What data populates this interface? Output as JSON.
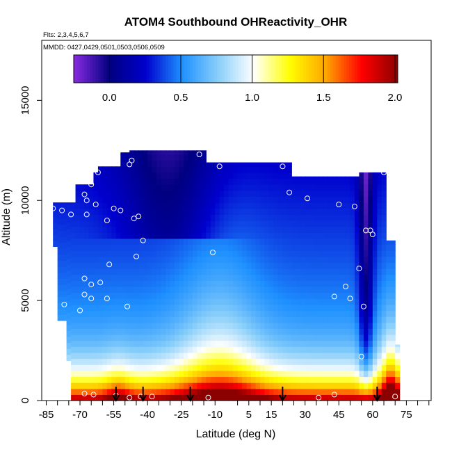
{
  "title": "ATOM4 Southbound OHReactivity_OHR",
  "flights_text": "Flts: 2,3,4,5,6,7",
  "mmdd_text": "MMDD: 0427,0429,0501,0503,0506,0509",
  "chart_data": {
    "type": "heatmap",
    "title": "ATOM4 Southbound OHReactivity_OHR",
    "xlabel": "Latitude (deg N)",
    "ylabel": "Altitude (m)",
    "xlim": [
      -87,
      86
    ],
    "ylim": [
      0,
      18000
    ],
    "x_ticks": [
      -85,
      -70,
      -55,
      -40,
      -25,
      -10,
      5,
      15,
      30,
      45,
      60,
      75
    ],
    "x_tick_labels": [
      "-85",
      "-70",
      "-55",
      "-40",
      "-25",
      "-10",
      "5",
      "15",
      "30",
      "45",
      "60",
      "75"
    ],
    "x_minor_ticks": [
      -80,
      -75,
      -65,
      -60,
      -50,
      -45,
      -35,
      -30,
      -20,
      -15,
      0,
      10,
      20,
      25,
      35,
      40,
      50,
      55,
      65,
      70,
      80,
      85
    ],
    "y_ticks": [
      0,
      5000,
      10000,
      15000
    ],
    "y_tick_labels": [
      "0",
      "5000",
      "10000",
      "15000"
    ],
    "colorbar": {
      "range": [
        -0.25,
        2.02
      ],
      "ticks": [
        0.0,
        0.5,
        1.0,
        1.5,
        2.0
      ],
      "tick_labels": [
        "0.0",
        "0.5",
        "1.0",
        "1.5",
        "2.0"
      ],
      "colors": [
        "#8a2be2",
        "#000080",
        "#0000cd",
        "#1e90ff",
        "#87cefa",
        "#ffffff",
        "#ffff00",
        "#ffa500",
        "#ff0000",
        "#8b0000"
      ]
    },
    "sample_points": [
      {
        "x": -82,
        "y": 9600
      },
      {
        "x": -78,
        "y": 9500
      },
      {
        "x": -74,
        "y": 9300
      },
      {
        "x": -68,
        "y": 10300
      },
      {
        "x": -67,
        "y": 10000
      },
      {
        "x": -65,
        "y": 10800
      },
      {
        "x": -62,
        "y": 11400
      },
      {
        "x": -63,
        "y": 9800
      },
      {
        "x": -58,
        "y": 9000
      },
      {
        "x": -55,
        "y": 9600
      },
      {
        "x": -52,
        "y": 9500
      },
      {
        "x": -47,
        "y": 12000
      },
      {
        "x": -48,
        "y": 11800
      },
      {
        "x": -46,
        "y": 9100
      },
      {
        "x": -44,
        "y": 9200
      },
      {
        "x": -42,
        "y": 8000
      },
      {
        "x": -67,
        "y": 9300
      },
      {
        "x": -57,
        "y": 6800
      },
      {
        "x": -45,
        "y": 7200
      },
      {
        "x": -68,
        "y": 6100
      },
      {
        "x": -65,
        "y": 5800
      },
      {
        "x": -61,
        "y": 5900
      },
      {
        "x": -68,
        "y": 5300
      },
      {
        "x": -65,
        "y": 5100
      },
      {
        "x": -58,
        "y": 5100
      },
      {
        "x": -49,
        "y": 4700
      },
      {
        "x": -77,
        "y": 4800
      },
      {
        "x": -70,
        "y": 4500
      },
      {
        "x": -68,
        "y": 350
      },
      {
        "x": -64,
        "y": 300
      },
      {
        "x": -54,
        "y": 250
      },
      {
        "x": -48,
        "y": 150
      },
      {
        "x": -43,
        "y": 200
      },
      {
        "x": -38,
        "y": 200
      },
      {
        "x": -17,
        "y": 12300
      },
      {
        "x": -8,
        "y": 11700
      },
      {
        "x": -11,
        "y": 7400
      },
      {
        "x": 20,
        "y": 11700
      },
      {
        "x": 23,
        "y": 10400
      },
      {
        "x": 31,
        "y": 10100
      },
      {
        "x": 45,
        "y": 9800
      },
      {
        "x": 52,
        "y": 9700
      },
      {
        "x": 57,
        "y": 8500
      },
      {
        "x": 59,
        "y": 8500
      },
      {
        "x": 60,
        "y": 8300
      },
      {
        "x": 65,
        "y": 11400
      },
      {
        "x": 54,
        "y": 6600
      },
      {
        "x": 48,
        "y": 5700
      },
      {
        "x": 43,
        "y": 5200
      },
      {
        "x": 50,
        "y": 5100
      },
      {
        "x": 56,
        "y": 4700
      },
      {
        "x": 55,
        "y": 2200
      },
      {
        "x": 36,
        "y": 150
      },
      {
        "x": 43,
        "y": 300
      },
      {
        "x": -13,
        "y": 150
      },
      {
        "x": 70,
        "y": 200
      }
    ],
    "arrows_latitude": [
      -54,
      -42,
      -21,
      20,
      62
    ]
  }
}
